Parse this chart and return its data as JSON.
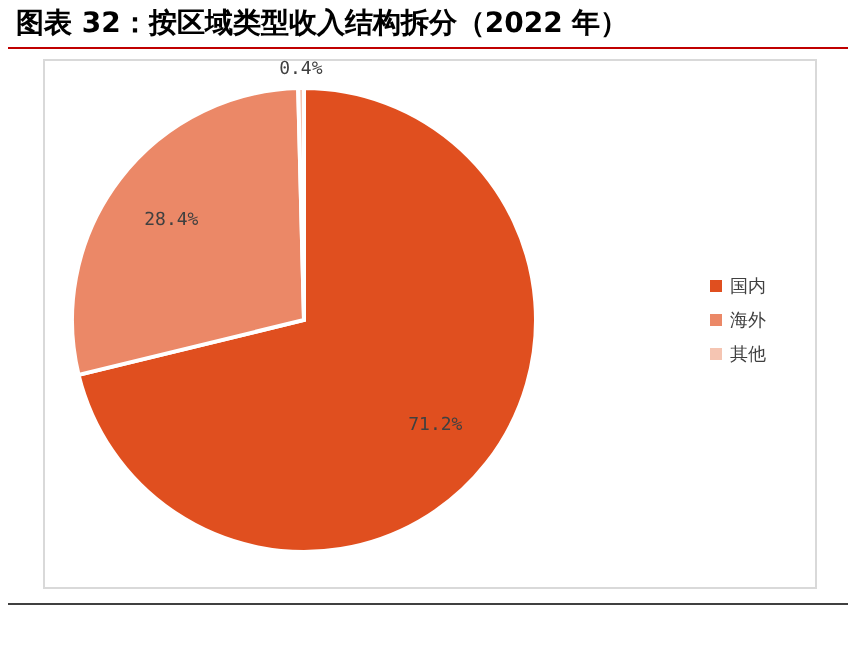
{
  "chart_data": {
    "type": "pie",
    "title": "图表 32：按区域类型收入结构拆分（2022 年）",
    "categories": [
      "国内",
      "海外",
      "其他"
    ],
    "values": [
      71.2,
      28.4,
      0.4
    ],
    "colors": [
      "#e04f1f",
      "#eb8867",
      "#f5c5b2"
    ],
    "value_labels": [
      "71.2%",
      "28.4%",
      "0.4%"
    ],
    "legend": "right"
  }
}
